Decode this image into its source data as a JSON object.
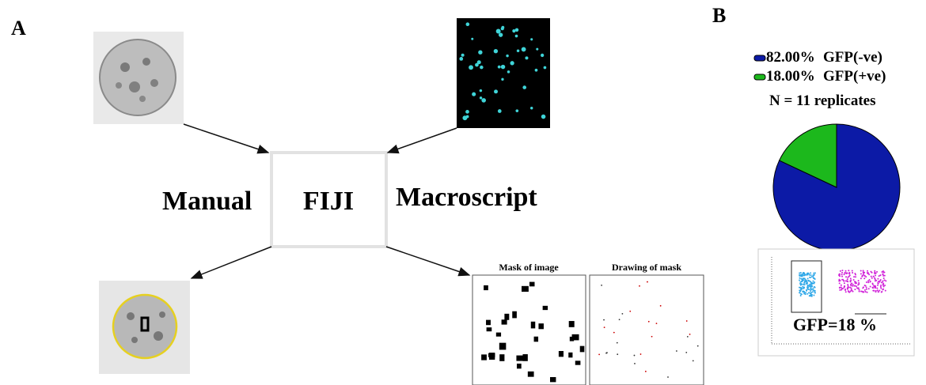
{
  "panel_a": {
    "label": "A",
    "left_label": "Manual",
    "center_label": "FIJI",
    "right_label": "Macroscript",
    "mask_titles": [
      "Mask of image",
      "Drawing of mask"
    ]
  },
  "chart_data": {
    "type": "pie",
    "label": "B",
    "categories": [
      "GFP(-ve)",
      "GFP(+ve)"
    ],
    "values": [
      82,
      18
    ],
    "value_labels": [
      "82.00%",
      "18.00%"
    ],
    "colors": [
      "#0c1aa6",
      "#1cb81c"
    ],
    "subtitle": "N = 11 replicates",
    "annotation": "GFP=18 %"
  }
}
